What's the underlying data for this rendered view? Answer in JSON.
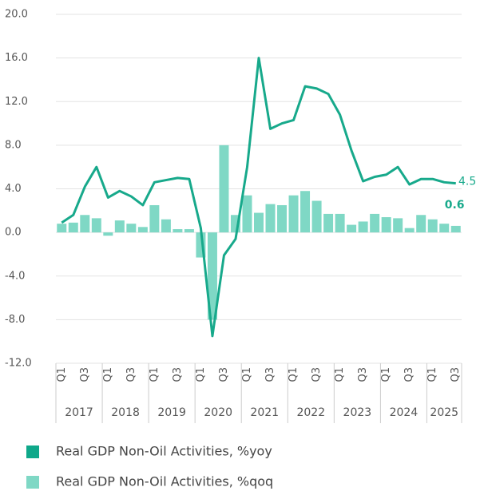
{
  "chart_data": {
    "type": "bar-line",
    "categories": [
      "Q1",
      null,
      "Q3",
      null,
      "Q1",
      null,
      "Q3",
      null,
      "Q1",
      null,
      "Q3",
      null,
      "Q1",
      null,
      "Q3",
      null,
      "Q1",
      null,
      "Q3",
      null,
      "Q1",
      null,
      "Q3",
      null,
      "Q1",
      null,
      "Q3",
      null,
      "Q1",
      null,
      "Q3",
      null,
      "Q1",
      null,
      "Q3"
    ],
    "years": [
      "2017",
      "2018",
      "2019",
      "2020",
      "2021",
      "2022",
      "2023",
      "2024",
      "2025"
    ],
    "series": [
      {
        "name": "Real GDP Non-Oil Activities, %yoy",
        "type": "line",
        "color": "#17a98b",
        "values": [
          0.9,
          1.6,
          4.2,
          6.0,
          3.2,
          3.8,
          3.3,
          2.5,
          4.6,
          4.8,
          5.0,
          4.9,
          0.4,
          -9.5,
          -2.1,
          -0.6,
          6.0,
          16.0,
          9.5,
          10.0,
          10.3,
          13.4,
          13.2,
          12.7,
          10.8,
          7.5,
          4.7,
          5.1,
          5.3,
          6.0,
          4.4,
          4.9,
          4.9,
          4.6,
          4.5
        ]
      },
      {
        "name": "Real GDP Non-Oil Activities, %qoq",
        "type": "bar",
        "color": "#7fd8c5",
        "values": [
          0.8,
          0.9,
          1.6,
          1.3,
          -0.3,
          1.1,
          0.8,
          0.5,
          2.5,
          1.2,
          0.3,
          0.3,
          -2.3,
          -8.0,
          8.0,
          1.6,
          3.4,
          1.8,
          2.6,
          2.5,
          3.4,
          3.8,
          2.9,
          1.7,
          1.7,
          0.7,
          1.0,
          1.7,
          1.4,
          1.3,
          0.4,
          1.6,
          1.2,
          0.8,
          0.6
        ]
      }
    ],
    "ylim": [
      -12,
      20
    ],
    "yticks": [
      {
        "value": -12,
        "label": "-12.0"
      },
      {
        "value": -8,
        "label": "-8.0"
      },
      {
        "value": -4,
        "label": "-4.0"
      },
      {
        "value": 0,
        "label": "0.0"
      },
      {
        "value": 4,
        "label": "4.0"
      },
      {
        "value": 8,
        "label": "8.0"
      },
      {
        "value": 12,
        "label": "12.0"
      },
      {
        "value": 16,
        "label": "16.0"
      },
      {
        "value": 20,
        "label": "20.0"
      }
    ],
    "grid": true
  }
}
